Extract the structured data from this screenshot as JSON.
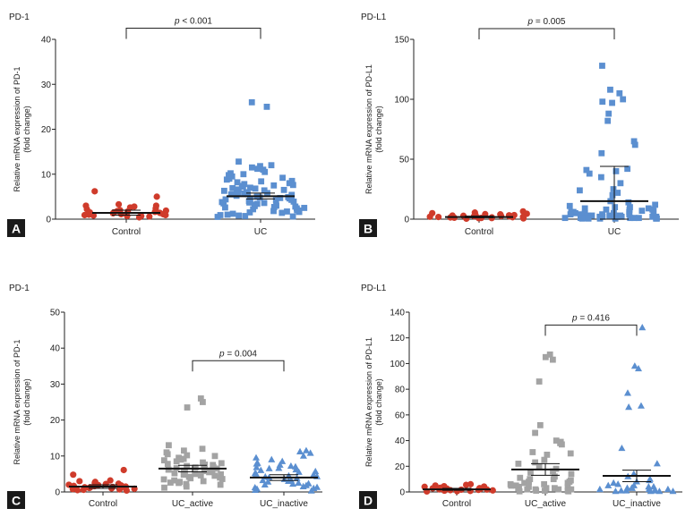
{
  "colors": {
    "control": "#cf3b2b",
    "uc": "#5b8fd0",
    "uc_active": "#a3a3a3",
    "uc_inactive": "#5b8fd0",
    "label_bg": "#1a1a1a"
  },
  "chart_data": [
    {
      "type": "scatter",
      "panel_letter": "A",
      "title": "PD-1",
      "ylabel": [
        "Relative mRNA expression of PD-1",
        "(fold change)"
      ],
      "ylim": [
        0,
        40
      ],
      "yticks": [
        0,
        10,
        20,
        30,
        40
      ],
      "categories": [
        "Control",
        "UC"
      ],
      "mean_lines": [
        1.4,
        5.1
      ],
      "error_bars": [
        [
          0.9,
          2.0
        ],
        [
          4.5,
          5.8
        ]
      ],
      "comparison": {
        "from": 0,
        "to": 1,
        "label": "p < 0.001",
        "y": 42.5
      },
      "series": [
        {
          "name": "Control",
          "marker": "circle",
          "color_key": "control",
          "values": [
            6.2,
            5.0,
            3.3,
            3.0,
            3.0,
            2.6,
            2.2,
            2.0,
            1.9,
            1.7,
            1.6,
            1.5,
            1.4,
            1.3,
            1.2,
            1.1,
            1.0,
            0.9,
            0.8,
            0.7,
            0.6,
            0.5,
            0.4,
            1.8,
            2.4,
            1.1,
            0.9,
            0.7,
            1.5,
            2.8
          ]
        },
        {
          "name": "UC",
          "marker": "square",
          "color_key": "uc",
          "values": [
            26,
            25,
            12.8,
            12,
            11.5,
            11.8,
            11,
            11.2,
            10.5,
            10.2,
            10,
            9.5,
            9.2,
            9,
            8.8,
            8.5,
            8.2,
            8,
            7.8,
            7.5,
            7.2,
            7,
            6.8,
            6.5,
            6.2,
            6,
            5.8,
            5.5,
            5.2,
            5,
            4.8,
            4.5,
            4.2,
            4,
            3.8,
            3.5,
            3.2,
            3,
            2.8,
            2.5,
            2.2,
            2,
            1.8,
            1.5,
            1.2,
            1,
            0.8,
            0.5,
            7.6,
            6.6,
            5.6,
            4.6,
            3.6,
            2.6,
            1.6,
            0.6,
            8.4,
            6.4,
            5.4,
            4.4,
            3.4,
            2.4,
            1.4,
            9.8,
            7.4,
            5.9,
            4.9,
            3.9,
            2.9,
            1.9,
            0.9,
            6.9,
            5.7,
            4.7,
            3.7,
            2.7,
            1.7,
            0.7,
            6.3,
            4.3
          ]
        }
      ]
    },
    {
      "type": "scatter",
      "panel_letter": "B",
      "title": "PD-L1",
      "ylabel": [
        "Relative mRNA expression of PD-L1",
        "(fold change)"
      ],
      "ylim": [
        0,
        150
      ],
      "yticks": [
        0,
        50,
        100,
        150
      ],
      "categories": [
        "Control",
        "UC"
      ],
      "mean_lines": [
        1.8,
        15
      ],
      "error_bars": [
        [
          1.2,
          2.5
        ],
        [
          0,
          44
        ]
      ],
      "comparison": {
        "from": 0,
        "to": 1,
        "label": "p = 0.005",
        "y": 159
      },
      "series": [
        {
          "name": "Control",
          "marker": "circle",
          "color_key": "control",
          "values": [
            6.5,
            5.5,
            5.0,
            4.5,
            4.0,
            3.5,
            3.2,
            3.0,
            2.8,
            2.5,
            2.3,
            2.0,
            1.8,
            1.6,
            1.4,
            1.2,
            1.0,
            0.8,
            0.6,
            0.4,
            1.9,
            2.6,
            3.4,
            4.2,
            0.9,
            1.5
          ]
        },
        {
          "name": "UC",
          "marker": "square",
          "color_key": "uc",
          "values": [
            128,
            108,
            105,
            100,
            98,
            97,
            88,
            82,
            65,
            62,
            55,
            42,
            41,
            40,
            38,
            35,
            30,
            25,
            24,
            22,
            20,
            15,
            14,
            12,
            11,
            10,
            10,
            9,
            9,
            8,
            8,
            8,
            7,
            7,
            6,
            6,
            6,
            5,
            5,
            5,
            4,
            4,
            4,
            4,
            3,
            3,
            3,
            3,
            3,
            2,
            2,
            2,
            2,
            2,
            2,
            1,
            1,
            1,
            1,
            1,
            1,
            1,
            0.5,
            0.5,
            0.5,
            0.5,
            0.5,
            0.5
          ]
        }
      ]
    },
    {
      "type": "scatter",
      "panel_letter": "C",
      "title": "PD-1",
      "ylabel": [
        "Relative mRNA expression of PD-1",
        "(fold change)"
      ],
      "ylim": [
        0,
        50
      ],
      "yticks": [
        0,
        10,
        20,
        30,
        40,
        50
      ],
      "categories": [
        "Control",
        "UC_active",
        "UC_inactive"
      ],
      "mean_lines": [
        1.5,
        6.5,
        4.0
      ],
      "error_bars": [
        [
          1.0,
          2.0
        ],
        [
          5.6,
          7.4
        ],
        [
          3.2,
          4.8
        ]
      ],
      "comparison": {
        "from": 1,
        "to": 2,
        "label": "p = 0.004",
        "y": 36.5
      },
      "series": [
        {
          "name": "Control",
          "marker": "circle",
          "color_key": "control",
          "values": [
            6.1,
            4.8,
            3.2,
            3.0,
            2.8,
            2.5,
            2.2,
            2.0,
            1.8,
            1.6,
            1.5,
            1.4,
            1.3,
            1.2,
            1.1,
            1.0,
            0.9,
            0.8,
            0.7,
            0.6,
            0.5,
            0.4,
            1.7,
            2.3,
            1.9,
            0.9,
            1.3
          ]
        },
        {
          "name": "UC_active",
          "marker": "square",
          "color_key": "uc_active",
          "values": [
            26,
            25,
            23.5,
            13,
            12,
            11.5,
            11,
            10.5,
            10.2,
            10,
            9.5,
            9.2,
            9,
            8.8,
            8.5,
            8.2,
            8,
            7.8,
            7.5,
            7.2,
            7,
            6.8,
            6.5,
            6.2,
            6,
            5.8,
            5.5,
            5.2,
            5,
            4.8,
            4.5,
            4.2,
            4,
            3.8,
            3.5,
            3.2,
            3,
            2.8,
            2.5,
            2.2,
            2,
            1.5,
            1.2,
            7.6,
            6.6,
            5.6,
            4.6,
            3.6,
            2.6,
            6.9,
            5.9,
            4.9
          ]
        },
        {
          "name": "UC_inactive",
          "marker": "triangle",
          "color_key": "uc_inactive",
          "values": [
            11.5,
            11.2,
            10.8,
            10,
            9.5,
            9,
            8.5,
            8,
            7.8,
            7.5,
            7,
            6.8,
            6.5,
            6.2,
            6,
            5.5,
            5.2,
            5,
            4.8,
            4.5,
            4.2,
            4,
            3.8,
            3.5,
            3.2,
            3,
            2.8,
            2.5,
            2.2,
            2,
            1.8,
            1.5,
            1.2,
            1,
            0.8,
            0.5,
            0.3,
            5.7,
            4.3,
            3.3,
            2.3,
            1.3,
            6.6,
            7.2
          ]
        }
      ]
    },
    {
      "type": "scatter",
      "panel_letter": "D",
      "title": "PD-L1",
      "ylabel": [
        "Relative mRNA expression of PD-L1",
        "(fold change)"
      ],
      "ylim": [
        0,
        140
      ],
      "yticks": [
        0,
        20,
        40,
        60,
        80,
        100,
        120,
        140
      ],
      "categories": [
        "Control",
        "UC_active",
        "UC_inactive"
      ],
      "mean_lines": [
        2.0,
        17.5,
        12.5
      ],
      "error_bars": [
        [
          1.3,
          2.8
        ],
        [
          13,
          22
        ],
        [
          8,
          17
        ]
      ],
      "comparison": {
        "from": 1,
        "to": 2,
        "label": "p = 0.416",
        "y": 130
      },
      "series": [
        {
          "name": "Control",
          "marker": "circle",
          "color_key": "control",
          "values": [
            6,
            5.5,
            5,
            4.5,
            4,
            3.5,
            3.2,
            3,
            2.8,
            2.5,
            2.2,
            2,
            1.8,
            1.6,
            1.4,
            1.2,
            1,
            0.8,
            0.6,
            0.4,
            2.6,
            1.9,
            3.6,
            4.2
          ]
        },
        {
          "name": "UC_active",
          "marker": "square",
          "color_key": "uc_active",
          "values": [
            107,
            105,
            103,
            86,
            52,
            46,
            40,
            39,
            38,
            37,
            31,
            30,
            29,
            25,
            23,
            22,
            20,
            18,
            16,
            15,
            14,
            12,
            11,
            10,
            10,
            9,
            8,
            8,
            7,
            7,
            6,
            6,
            5,
            5,
            5,
            4,
            4,
            4,
            3,
            3,
            3,
            2,
            2,
            2,
            2,
            1,
            1,
            1,
            0.5,
            0.5
          ]
        },
        {
          "name": "UC_inactive",
          "marker": "triangle",
          "color_key": "uc_inactive",
          "values": [
            128,
            98,
            96,
            77,
            67,
            66,
            34,
            22,
            14,
            12,
            10,
            9,
            8,
            7,
            6,
            5,
            5,
            4,
            4,
            3,
            3,
            3,
            2,
            2,
            2,
            1.5,
            1,
            1,
            1,
            0.5,
            0.5,
            0.5,
            0.5
          ]
        }
      ]
    }
  ]
}
